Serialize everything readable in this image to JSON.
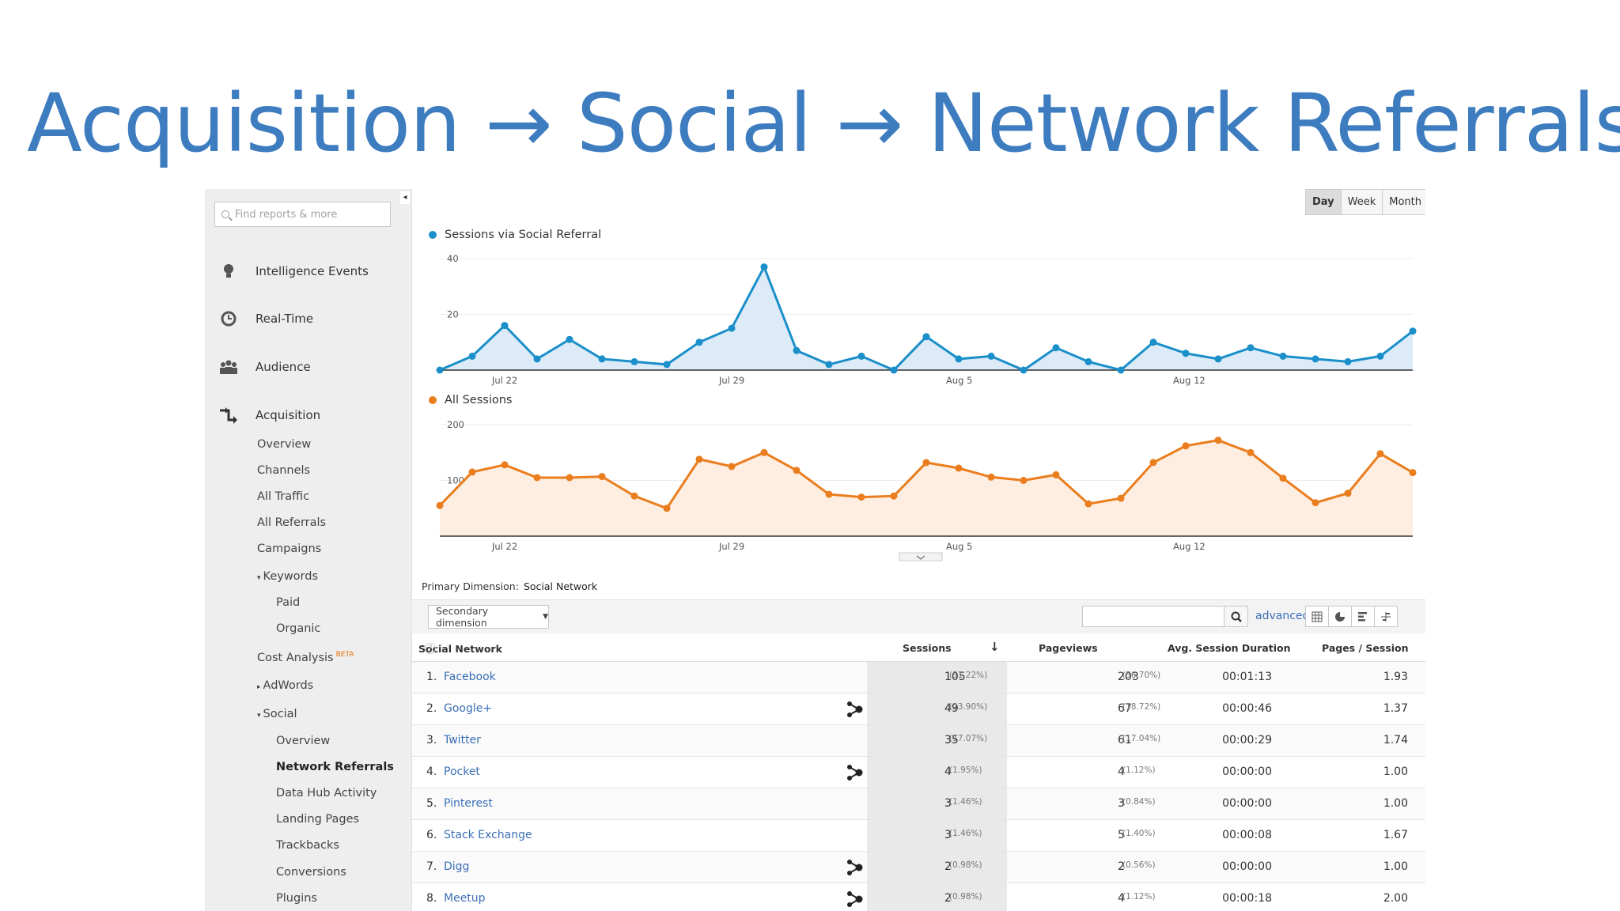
{
  "slide_title": "Acquisition → Social → Network Referrals",
  "colors": {
    "title": "#3e7cc0",
    "series1": "#1a8fc9",
    "series2": "#ea7d1d",
    "link": "#3b6fb6"
  },
  "sidebar": {
    "search_placeholder": "Find reports & more",
    "collapse_icon": "chevron-left-icon",
    "main_items": [
      {
        "label": "Intelligence Events",
        "icon": "lightbulb-icon"
      },
      {
        "label": "Real-Time",
        "icon": "clock-icon"
      },
      {
        "label": "Audience",
        "icon": "people-icon"
      },
      {
        "label": "Acquisition",
        "icon": "acquisition-arrows-icon"
      }
    ],
    "acquisition_items": {
      "overview": "Overview",
      "channels": "Channels",
      "all_traffic": "All Traffic",
      "all_referrals": "All Referrals",
      "campaigns": "Campaigns",
      "keywords": "Keywords",
      "paid": "Paid",
      "organic": "Organic",
      "cost_analysis": "Cost Analysis",
      "beta": "BETA",
      "adwords": "AdWords",
      "social": "Social",
      "social_overview": "Overview",
      "network_referrals": "Network Referrals",
      "data_hub": "Data Hub Activity",
      "landing_pages": "Landing Pages",
      "trackbacks": "Trackbacks",
      "conversions": "Conversions",
      "plugins": "Plugins"
    }
  },
  "period_toggle": [
    "Day",
    "Week",
    "Month"
  ],
  "chart_data": [
    {
      "type": "area",
      "series": [
        {
          "name": "Sessions via Social Referral",
          "values": [
            0,
            5,
            16,
            4,
            11,
            4,
            3,
            2,
            10,
            15,
            37,
            7,
            2,
            5,
            0,
            12,
            4,
            5,
            0,
            8,
            3,
            0,
            10,
            6,
            4,
            8,
            5,
            4,
            3,
            5,
            14
          ]
        }
      ],
      "x_tick_labels": [
        "Jul 22",
        "Jul 29",
        "Aug 5",
        "Aug 12"
      ],
      "x_tick_index": [
        2,
        9,
        16,
        23
      ],
      "ylim": [
        0,
        40
      ],
      "y_tick_labels": [
        "40",
        "20"
      ],
      "y_tick_values": [
        40,
        20
      ]
    },
    {
      "type": "area",
      "series": [
        {
          "name": "All Sessions",
          "values": [
            55,
            115,
            128,
            105,
            105,
            107,
            72,
            50,
            138,
            125,
            150,
            118,
            75,
            70,
            72,
            132,
            122,
            106,
            100,
            110,
            58,
            68,
            132,
            162,
            172,
            150,
            104,
            60,
            77,
            148,
            114
          ]
        }
      ],
      "x_tick_labels": [
        "Jul 22",
        "Jul 29",
        "Aug 5",
        "Aug 12"
      ],
      "x_tick_index": [
        2,
        9,
        16,
        23
      ],
      "ylim": [
        0,
        200
      ],
      "y_tick_labels": [
        "200",
        "100"
      ],
      "y_tick_values": [
        200,
        100
      ]
    }
  ],
  "primary_dimension": {
    "label": "Primary Dimension:",
    "value": "Social Network"
  },
  "toolbar": {
    "secondary_dimension": "Secondary dimension",
    "advanced": "advanced"
  },
  "table": {
    "headers": {
      "network": "Social Network",
      "sessions": "Sessions",
      "pageviews": "Pageviews",
      "duration": "Avg. Session Duration",
      "pages": "Pages / Session"
    },
    "rows": [
      {
        "n": "1.",
        "network": "Facebook",
        "hub": false,
        "sessions": "105",
        "sessions_pct": "(51.22%)",
        "pageviews": "203",
        "pageviews_pct": "(56.70%)",
        "duration": "00:01:13",
        "pages": "1.93"
      },
      {
        "n": "2.",
        "network": "Google+",
        "hub": true,
        "sessions": "49",
        "sessions_pct": "(23.90%)",
        "pageviews": "67",
        "pageviews_pct": "(18.72%)",
        "duration": "00:00:46",
        "pages": "1.37"
      },
      {
        "n": "3.",
        "network": "Twitter",
        "hub": false,
        "sessions": "35",
        "sessions_pct": "(17.07%)",
        "pageviews": "61",
        "pageviews_pct": "(17.04%)",
        "duration": "00:00:29",
        "pages": "1.74"
      },
      {
        "n": "4.",
        "network": "Pocket",
        "hub": true,
        "sessions": "4",
        "sessions_pct": "(1.95%)",
        "pageviews": "4",
        "pageviews_pct": "(1.12%)",
        "duration": "00:00:00",
        "pages": "1.00"
      },
      {
        "n": "5.",
        "network": "Pinterest",
        "hub": false,
        "sessions": "3",
        "sessions_pct": "(1.46%)",
        "pageviews": "3",
        "pageviews_pct": "(0.84%)",
        "duration": "00:00:00",
        "pages": "1.00"
      },
      {
        "n": "6.",
        "network": "Stack Exchange",
        "hub": false,
        "sessions": "3",
        "sessions_pct": "(1.46%)",
        "pageviews": "5",
        "pageviews_pct": "(1.40%)",
        "duration": "00:00:08",
        "pages": "1.67"
      },
      {
        "n": "7.",
        "network": "Digg",
        "hub": true,
        "sessions": "2",
        "sessions_pct": "(0.98%)",
        "pageviews": "2",
        "pageviews_pct": "(0.56%)",
        "duration": "00:00:00",
        "pages": "1.00"
      },
      {
        "n": "8.",
        "network": "Meetup",
        "hub": true,
        "sessions": "2",
        "sessions_pct": "(0.98%)",
        "pageviews": "4",
        "pageviews_pct": "(1.12%)",
        "duration": "00:00:18",
        "pages": "2.00"
      }
    ]
  }
}
